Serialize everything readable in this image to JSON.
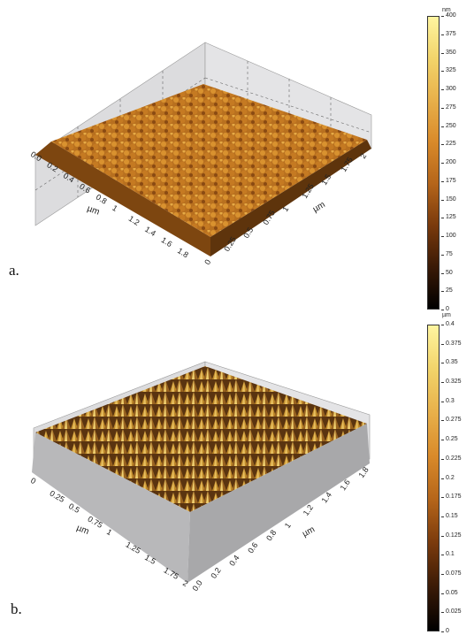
{
  "panels": [
    {
      "label": "a.",
      "left_axis": {
        "name": "µm",
        "ticks": [
          "0.0",
          "0.2",
          "0.4",
          "0.6",
          "0.8",
          "1",
          "1.2",
          "1.4",
          "1.6",
          "1.8"
        ]
      },
      "right_axis": {
        "name": "µm",
        "ticks": [
          "0",
          "0.25",
          "0.5",
          "0.75",
          "1",
          "1.25",
          "1.5",
          "1.75",
          "2"
        ]
      },
      "colorbar": {
        "unit": "nm",
        "min": 0,
        "max": 400,
        "ticks": [
          "0",
          "25",
          "50",
          "75",
          "100",
          "125",
          "150",
          "175",
          "200",
          "225",
          "250",
          "275",
          "300",
          "325",
          "350",
          "375",
          "400"
        ]
      }
    },
    {
      "label": "b.",
      "left_axis": {
        "name": "µm",
        "ticks": [
          "0",
          "0.25",
          "0.5",
          "0.75",
          "1",
          "1.25",
          "1.5",
          "1.75",
          "2"
        ]
      },
      "right_axis": {
        "name": "µm",
        "ticks": [
          "0.0",
          "0.2",
          "0.4",
          "0.6",
          "0.8",
          "1",
          "1.2",
          "1.4",
          "1.6",
          "1.8"
        ]
      },
      "colorbar": {
        "unit": "µm",
        "min": 0,
        "max": 0.4,
        "ticks": [
          "0",
          "0.025",
          "0.05",
          "0.075",
          "0.1",
          "0.125",
          "0.15",
          "0.175",
          "0.2",
          "0.225",
          "0.25",
          "0.275",
          "0.3",
          "0.325",
          "0.35",
          "0.375",
          "0.4"
        ]
      }
    }
  ],
  "colors": {
    "colormap": [
      "#000000",
      "#3a1a06",
      "#7a3a0c",
      "#b5651a",
      "#d98a2a",
      "#e8b04a",
      "#f2d46a",
      "#fff5a0"
    ],
    "box_wall": "#d8d8da",
    "box_grid": "#666666"
  }
}
